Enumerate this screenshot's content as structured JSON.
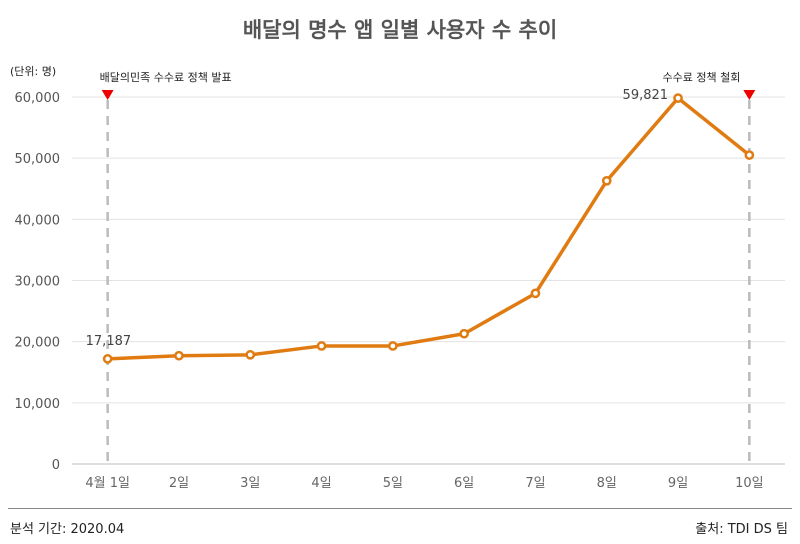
{
  "chart_data": {
    "type": "line",
    "title": "배달의 명수 앱 일별 사용자 수 추이",
    "unit_label": "(단위: 명)",
    "categories": [
      "4월 1일",
      "2일",
      "3일",
      "4일",
      "5일",
      "6일",
      "7일",
      "8일",
      "9일",
      "10일"
    ],
    "series": [
      {
        "values": [
          17187,
          17700,
          17850,
          19300,
          19300,
          21300,
          27900,
          46300,
          59821,
          50500
        ]
      }
    ],
    "y_ticks": [
      "0",
      "10,000",
      "20,000",
      "30,000",
      "40,000",
      "50,000",
      "60,000"
    ],
    "ylim": [
      0,
      60000
    ],
    "data_labels": [
      {
        "index": 0,
        "text": "17,187"
      },
      {
        "index": 8,
        "text": "59,821"
      }
    ],
    "annotations": [
      {
        "index": 0,
        "text": "배달의민족 수수료 정책 발표"
      },
      {
        "index": 9,
        "text": "수수료 정책 철회"
      }
    ],
    "grid": true,
    "line_color": "#E07B12",
    "marker_line_color": "#bbbbbb",
    "marker_color": "#ee0000"
  },
  "footer": {
    "left": "분석 기간: 2020.04",
    "right": "출처: TDI DS 팀"
  }
}
